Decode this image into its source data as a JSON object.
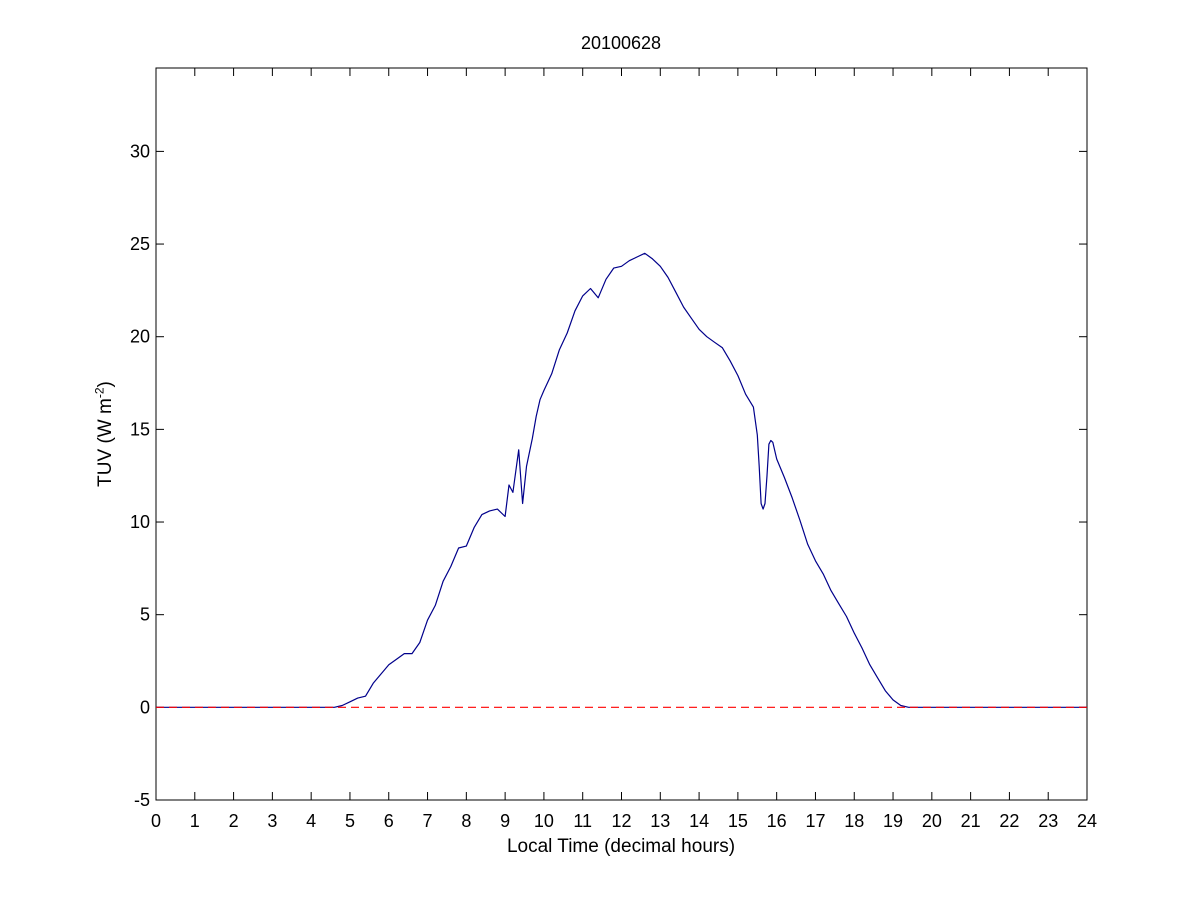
{
  "chart_data": {
    "type": "line",
    "title": "20100628",
    "xlabel": "Local Time (decimal hours)",
    "ylabel": {
      "prefix": "TUV (W m",
      "exponent": "-2",
      "suffix": ")"
    },
    "xlim": [
      0,
      24
    ],
    "ylim": [
      -5,
      34.5
    ],
    "xticks": [
      0,
      1,
      2,
      3,
      4,
      5,
      6,
      7,
      8,
      9,
      10,
      11,
      12,
      13,
      14,
      15,
      16,
      17,
      18,
      19,
      20,
      21,
      22,
      23,
      24
    ],
    "yticks": [
      -5,
      0,
      5,
      10,
      15,
      20,
      25,
      30
    ],
    "grid": false,
    "series": [
      {
        "style": "solid",
        "color": "#00008b",
        "x": [
          0,
          4.6,
          4.8,
          5.0,
          5.2,
          5.4,
          5.6,
          5.8,
          6.0,
          6.2,
          6.4,
          6.6,
          6.8,
          7.0,
          7.2,
          7.4,
          7.6,
          7.8,
          8.0,
          8.2,
          8.4,
          8.6,
          8.8,
          9.0,
          9.1,
          9.2,
          9.35,
          9.45,
          9.55,
          9.7,
          9.8,
          9.9,
          10.0,
          10.2,
          10.4,
          10.6,
          10.8,
          11.0,
          11.2,
          11.4,
          11.6,
          11.8,
          12.0,
          12.2,
          12.4,
          12.6,
          12.8,
          13.0,
          13.2,
          13.4,
          13.6,
          13.8,
          14.0,
          14.2,
          14.4,
          14.6,
          14.8,
          15.0,
          15.2,
          15.4,
          15.5,
          15.55,
          15.6,
          15.65,
          15.7,
          15.75,
          15.8,
          15.85,
          15.9,
          16.0,
          16.2,
          16.4,
          16.6,
          16.8,
          17.0,
          17.2,
          17.4,
          17.6,
          17.8,
          18.0,
          18.2,
          18.4,
          18.6,
          18.8,
          19.0,
          19.2,
          19.4,
          19.6,
          19.8,
          20.0,
          24
        ],
        "y": [
          0,
          0,
          0.1,
          0.3,
          0.5,
          0.6,
          1.3,
          1.8,
          2.3,
          2.6,
          2.9,
          2.9,
          3.5,
          4.7,
          5.5,
          6.8,
          7.6,
          8.6,
          8.7,
          9.7,
          10.4,
          10.6,
          10.7,
          10.3,
          12.0,
          11.6,
          13.9,
          11.0,
          13.0,
          14.5,
          15.7,
          16.6,
          17.1,
          18.0,
          19.3,
          20.2,
          21.4,
          22.2,
          22.6,
          22.1,
          23.1,
          23.7,
          23.8,
          24.1,
          24.3,
          24.5,
          24.2,
          23.8,
          23.2,
          22.4,
          21.6,
          21.0,
          20.4,
          20.0,
          19.7,
          19.4,
          18.7,
          17.9,
          16.9,
          16.2,
          14.7,
          13.0,
          11.0,
          10.7,
          11.0,
          12.5,
          14.2,
          14.4,
          14.3,
          13.4,
          12.4,
          11.3,
          10.1,
          8.8,
          7.9,
          7.2,
          6.3,
          5.6,
          4.9,
          4.0,
          3.2,
          2.3,
          1.6,
          0.9,
          0.4,
          0.1,
          0,
          0,
          0,
          0,
          0
        ]
      },
      {
        "style": "dashed",
        "color": "#ff0000",
        "x": [
          0,
          24
        ],
        "y": [
          0,
          0
        ]
      }
    ]
  }
}
